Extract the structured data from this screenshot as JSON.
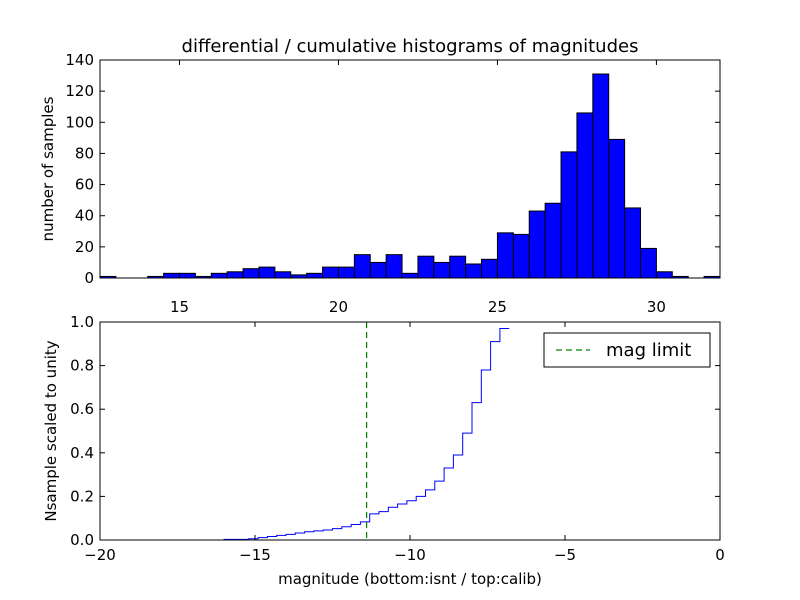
{
  "chart_data": [
    {
      "type": "bar",
      "title": "differential / cumulative histograms of magnitudes",
      "xlabel": "",
      "ylabel": "number of samples",
      "xlim": [
        12.5,
        32.0
      ],
      "ylim": [
        0,
        140
      ],
      "x_ticks": [
        15,
        20,
        25,
        30
      ],
      "y_ticks": [
        0,
        20,
        40,
        60,
        80,
        100,
        120,
        140
      ],
      "x_tick_position": "bottom",
      "bar_color": "#0000ff",
      "bins": [
        {
          "start": 12.5,
          "end": 13.0,
          "count": 1
        },
        {
          "start": 13.0,
          "end": 13.5,
          "count": 0
        },
        {
          "start": 13.5,
          "end": 14.0,
          "count": 0
        },
        {
          "start": 14.0,
          "end": 14.5,
          "count": 1
        },
        {
          "start": 14.5,
          "end": 15.0,
          "count": 3
        },
        {
          "start": 15.0,
          "end": 15.5,
          "count": 3
        },
        {
          "start": 15.5,
          "end": 16.0,
          "count": 1
        },
        {
          "start": 16.0,
          "end": 16.5,
          "count": 3
        },
        {
          "start": 16.5,
          "end": 17.0,
          "count": 4
        },
        {
          "start": 17.0,
          "end": 17.5,
          "count": 6
        },
        {
          "start": 17.5,
          "end": 18.0,
          "count": 7
        },
        {
          "start": 18.0,
          "end": 18.5,
          "count": 4
        },
        {
          "start": 18.5,
          "end": 19.0,
          "count": 2
        },
        {
          "start": 19.0,
          "end": 19.5,
          "count": 3
        },
        {
          "start": 19.5,
          "end": 20.0,
          "count": 7
        },
        {
          "start": 20.0,
          "end": 20.5,
          "count": 7
        },
        {
          "start": 20.5,
          "end": 21.0,
          "count": 15
        },
        {
          "start": 21.0,
          "end": 21.5,
          "count": 10
        },
        {
          "start": 21.5,
          "end": 22.0,
          "count": 15
        },
        {
          "start": 22.0,
          "end": 22.5,
          "count": 3
        },
        {
          "start": 22.5,
          "end": 23.0,
          "count": 14
        },
        {
          "start": 23.0,
          "end": 23.5,
          "count": 10
        },
        {
          "start": 23.5,
          "end": 24.0,
          "count": 14
        },
        {
          "start": 24.0,
          "end": 24.5,
          "count": 9
        },
        {
          "start": 24.5,
          "end": 25.0,
          "count": 12
        },
        {
          "start": 25.0,
          "end": 25.5,
          "count": 29
        },
        {
          "start": 25.5,
          "end": 26.0,
          "count": 28
        },
        {
          "start": 26.0,
          "end": 26.5,
          "count": 43
        },
        {
          "start": 26.5,
          "end": 27.0,
          "count": 48
        },
        {
          "start": 27.0,
          "end": 27.5,
          "count": 81
        },
        {
          "start": 27.5,
          "end": 28.0,
          "count": 106
        },
        {
          "start": 28.0,
          "end": 28.5,
          "count": 131
        },
        {
          "start": 28.5,
          "end": 29.0,
          "count": 89
        },
        {
          "start": 29.0,
          "end": 29.5,
          "count": 45
        },
        {
          "start": 29.5,
          "end": 30.0,
          "count": 19
        },
        {
          "start": 30.0,
          "end": 30.5,
          "count": 4
        },
        {
          "start": 30.5,
          "end": 31.0,
          "count": 1
        },
        {
          "start": 31.0,
          "end": 31.5,
          "count": 0
        },
        {
          "start": 31.5,
          "end": 32.0,
          "count": 1
        }
      ]
    },
    {
      "type": "line",
      "title": "",
      "xlabel": "magnitude (bottom:isnt / top:calib)",
      "ylabel": "Nsample scaled to unity",
      "xlim": [
        -20,
        0
      ],
      "ylim": [
        0,
        1.0
      ],
      "x_ticks": [
        -20,
        -15,
        -10,
        -5,
        0
      ],
      "y_ticks": [
        0.0,
        0.2,
        0.4,
        0.6,
        0.8,
        1.0
      ],
      "legend_position": "top-right",
      "series": [
        {
          "name": "",
          "color": "#0000ff",
          "style": "step",
          "x": [
            -20.0,
            -16.0,
            -15.2,
            -14.9,
            -14.6,
            -14.3,
            -14.0,
            -13.7,
            -13.4,
            -13.1,
            -12.8,
            -12.5,
            -12.2,
            -11.9,
            -11.6,
            -11.3,
            -11.0,
            -10.7,
            -10.4,
            -10.1,
            -9.8,
            -9.5,
            -9.2,
            -8.9,
            -8.6,
            -8.3,
            -8.0,
            -7.7,
            -7.4,
            -7.1
          ],
          "y": [
            0.0,
            0.003,
            0.006,
            0.011,
            0.016,
            0.021,
            0.026,
            0.032,
            0.038,
            0.042,
            0.046,
            0.052,
            0.061,
            0.071,
            0.083,
            0.12,
            0.13,
            0.15,
            0.165,
            0.18,
            0.2,
            0.23,
            0.27,
            0.33,
            0.39,
            0.49,
            0.63,
            0.78,
            0.91,
            0.97
          ]
        }
      ],
      "vline": {
        "x": -11.4,
        "color": "#008000",
        "style": "dashed",
        "label": "mag limit"
      }
    }
  ]
}
